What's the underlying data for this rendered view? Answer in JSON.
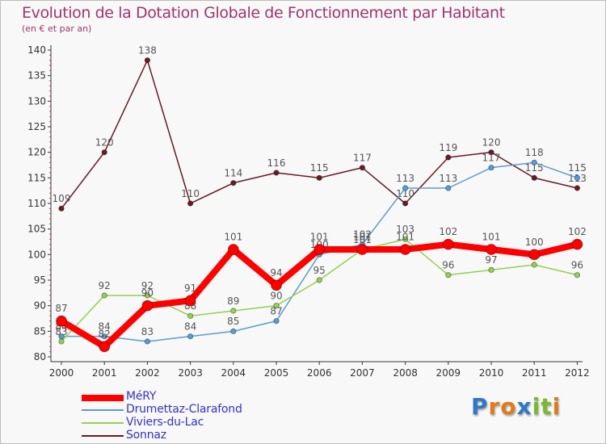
{
  "chart_data": {
    "type": "line",
    "title": "Evolution de la Dotation Globale de Fonctionnement par Habitant",
    "subtitle": "(en € et par an)",
    "xlabel": "",
    "ylabel": "",
    "categories": [
      "2000",
      "2001",
      "2002",
      "2003",
      "2004",
      "2005",
      "2006",
      "2007",
      "2008",
      "2009",
      "2010",
      "2011",
      "2012"
    ],
    "ylim": [
      80,
      140
    ],
    "yticks": [
      80,
      85,
      90,
      95,
      100,
      105,
      110,
      115,
      120,
      125,
      130,
      135,
      140
    ],
    "grid": false,
    "legend_position": "bottom-left",
    "series": [
      {
        "name": "Sonnaz",
        "color": "#6b1a22",
        "values": [
          109,
          120,
          138,
          110,
          114,
          116,
          115,
          117,
          110,
          119,
          120,
          115,
          113
        ]
      },
      {
        "name": "Drumettaz-Clarafond",
        "color": "#5a9bd5",
        "values": [
          84,
          84,
          83,
          84,
          85,
          87,
          100,
          102,
          113,
          113,
          117,
          118,
          115
        ]
      },
      {
        "name": "Viviers-du-Lac",
        "color": "#92d050",
        "values": [
          83,
          92,
          92,
          88,
          89,
          90,
          95,
          101,
          103,
          96,
          97,
          98,
          96
        ]
      },
      {
        "name": "MéRY",
        "color": "#ff0000",
        "values": [
          87,
          82,
          90,
          91,
          101,
          94,
          101,
          101,
          101,
          102,
          101,
          100,
          102
        ]
      }
    ],
    "legend": [
      {
        "name": "MéRY",
        "color": "#ff0000"
      },
      {
        "name": "Drumettaz-Clarafond",
        "color": "#5a9bd5"
      },
      {
        "name": "Viviers-du-Lac",
        "color": "#92d050"
      },
      {
        "name": "Sonnaz",
        "color": "#6b1a22"
      }
    ]
  },
  "brand": {
    "letters": [
      "P",
      "r",
      "o",
      "x",
      "i",
      "t",
      "i"
    ],
    "colors": [
      "#2f78c6",
      "#e07a1c",
      "#e07a1c",
      "#2f78c6",
      "#7cb82f",
      "#7cb82f",
      "#e07a1c"
    ]
  }
}
